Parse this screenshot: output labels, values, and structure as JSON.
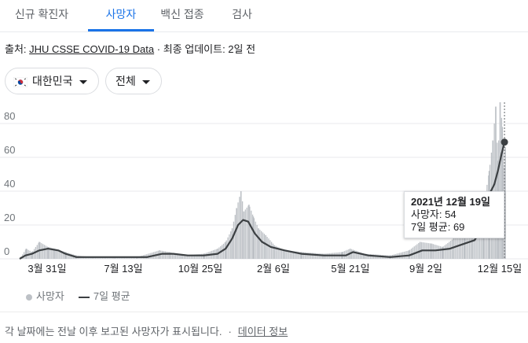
{
  "tabs": [
    {
      "label": "신규 확진자",
      "active": false
    },
    {
      "label": "사망자",
      "active": true
    },
    {
      "label": "백신 접종",
      "active": false
    },
    {
      "label": "검사",
      "active": false
    }
  ],
  "source": {
    "prefix": "출처:",
    "link": "JHU CSSE COVID-19 Data",
    "sep": "·",
    "updated": "최종 업데이트: 2일 전"
  },
  "filters": {
    "location": "대한민국",
    "range": "전체",
    "location_icon": "south-korea-flag-icon",
    "dropdown_icon": "caret-down-icon"
  },
  "tooltip": {
    "date": "2021년 12월 19일",
    "deaths_label": "사망자: 54",
    "avg_label": "7일 평균: 69"
  },
  "legend": {
    "deaths": "사망자",
    "avg": "7일 평균"
  },
  "footer": {
    "note": "각 날짜에는 전날 이후 보고된 사망자가 표시됩니다.",
    "sep": "·",
    "link": "데이터 정보"
  },
  "colors": {
    "accent": "#1a73e8",
    "bars": "#bdc1c6",
    "line": "#3c4043"
  },
  "chart_data": {
    "type": "bar",
    "x_range": [
      "2020-02-22",
      "2021-12-20"
    ],
    "ylim": [
      0,
      90
    ],
    "y_ticks": [
      0,
      20,
      40,
      60,
      80
    ],
    "x_tick_labels": [
      "3월 31일",
      "7월 13일",
      "10월 25일",
      "2월 6일",
      "5월 21일",
      "9월 2일",
      "12월 15일"
    ],
    "series": [
      {
        "name": "사망자",
        "type": "bar",
        "points": [
          [
            "2020-02-22",
            0
          ],
          [
            "2020-03-02",
            6
          ],
          [
            "2020-03-10",
            4
          ],
          [
            "2020-03-20",
            10
          ],
          [
            "2020-04-01",
            7
          ],
          [
            "2020-04-10",
            6
          ],
          [
            "2020-04-25",
            4
          ],
          [
            "2020-05-10",
            2
          ],
          [
            "2020-06-01",
            1
          ],
          [
            "2020-07-01",
            1
          ],
          [
            "2020-08-01",
            1
          ],
          [
            "2020-09-01",
            5
          ],
          [
            "2020-09-15",
            4
          ],
          [
            "2020-10-01",
            2
          ],
          [
            "2020-11-01",
            3
          ],
          [
            "2020-11-20",
            6
          ],
          [
            "2020-12-01",
            10
          ],
          [
            "2020-12-10",
            18
          ],
          [
            "2020-12-16",
            30
          ],
          [
            "2020-12-22",
            40
          ],
          [
            "2020-12-26",
            28
          ],
          [
            "2021-01-02",
            32
          ],
          [
            "2021-01-08",
            25
          ],
          [
            "2021-01-15",
            18
          ],
          [
            "2021-01-25",
            14
          ],
          [
            "2021-02-06",
            8
          ],
          [
            "2021-02-20",
            5
          ],
          [
            "2021-03-15",
            4
          ],
          [
            "2021-04-15",
            3
          ],
          [
            "2021-05-10",
            4
          ],
          [
            "2021-05-21",
            6
          ],
          [
            "2021-06-10",
            3
          ],
          [
            "2021-07-15",
            2
          ],
          [
            "2021-08-10",
            5
          ],
          [
            "2021-08-25",
            10
          ],
          [
            "2021-09-10",
            9
          ],
          [
            "2021-09-25",
            7
          ],
          [
            "2021-10-10",
            12
          ],
          [
            "2021-10-25",
            13
          ],
          [
            "2021-11-05",
            18
          ],
          [
            "2021-11-20",
            30
          ],
          [
            "2021-11-28",
            52
          ],
          [
            "2021-12-03",
            70
          ],
          [
            "2021-12-07",
            90
          ],
          [
            "2021-12-10",
            58
          ],
          [
            "2021-12-13",
            94
          ],
          [
            "2021-12-16",
            78
          ],
          [
            "2021-12-19",
            54
          ],
          [
            "2021-12-20",
            66
          ]
        ]
      },
      {
        "name": "7일 평균",
        "type": "line",
        "points": [
          [
            "2020-02-22",
            0
          ],
          [
            "2020-03-01",
            2
          ],
          [
            "2020-03-10",
            3
          ],
          [
            "2020-03-20",
            5
          ],
          [
            "2020-04-01",
            6
          ],
          [
            "2020-04-15",
            5
          ],
          [
            "2020-04-25",
            3
          ],
          [
            "2020-05-10",
            1
          ],
          [
            "2020-06-01",
            1
          ],
          [
            "2020-07-01",
            1
          ],
          [
            "2020-08-15",
            1
          ],
          [
            "2020-09-05",
            3
          ],
          [
            "2020-09-20",
            3
          ],
          [
            "2020-10-10",
            2
          ],
          [
            "2020-11-01",
            2
          ],
          [
            "2020-11-20",
            3
          ],
          [
            "2020-12-01",
            6
          ],
          [
            "2020-12-10",
            12
          ],
          [
            "2020-12-18",
            20
          ],
          [
            "2020-12-25",
            23
          ],
          [
            "2021-01-01",
            22
          ],
          [
            "2021-01-10",
            15
          ],
          [
            "2021-01-20",
            10
          ],
          [
            "2021-02-01",
            7
          ],
          [
            "2021-02-20",
            5
          ],
          [
            "2021-03-15",
            3
          ],
          [
            "2021-04-15",
            2
          ],
          [
            "2021-05-15",
            2
          ],
          [
            "2021-05-25",
            4
          ],
          [
            "2021-06-15",
            2
          ],
          [
            "2021-07-15",
            1
          ],
          [
            "2021-08-10",
            2
          ],
          [
            "2021-08-28",
            5
          ],
          [
            "2021-09-15",
            5
          ],
          [
            "2021-10-05",
            6
          ],
          [
            "2021-10-25",
            9
          ],
          [
            "2021-11-08",
            11
          ],
          [
            "2021-11-20",
            20
          ],
          [
            "2021-11-28",
            38
          ],
          [
            "2021-12-05",
            44
          ],
          [
            "2021-12-10",
            52
          ],
          [
            "2021-12-15",
            62
          ],
          [
            "2021-12-19",
            69
          ]
        ]
      }
    ],
    "highlight": {
      "date": "2021-12-19",
      "value": 69
    }
  }
}
